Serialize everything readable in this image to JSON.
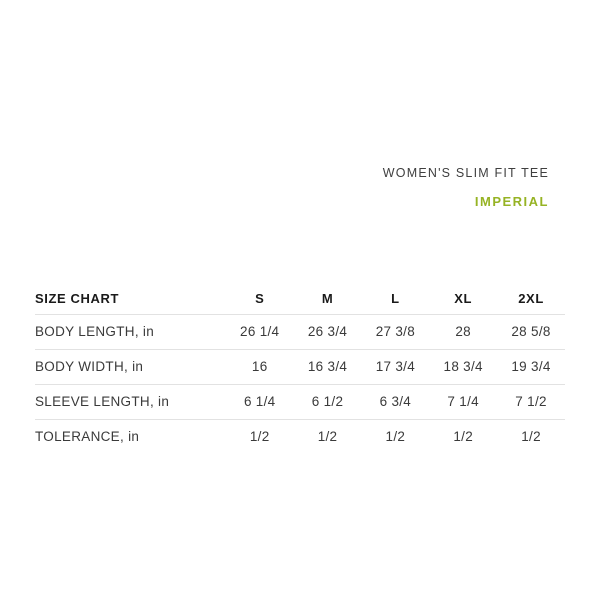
{
  "header": {
    "product_title": "WOMEN'S SLIM FIT TEE",
    "unit_label": "IMPERIAL",
    "unit_label_color": "#96b324",
    "title_color": "#3f3f3f"
  },
  "size_chart": {
    "title": "SIZE CHART",
    "columns": [
      "S",
      "M",
      "L",
      "XL",
      "2XL"
    ],
    "rows": [
      {
        "label": "BODY LENGTH, in",
        "values": [
          "26 1/4",
          "26 3/4",
          "27 3/8",
          "28",
          "28 5/8"
        ]
      },
      {
        "label": "BODY WIDTH, in",
        "values": [
          "16",
          "16 3/4",
          "17 3/4",
          "18 3/4",
          "19 3/4"
        ]
      },
      {
        "label": "SLEEVE LENGTH, in",
        "values": [
          "6 1/4",
          "6 1/2",
          "6 3/4",
          "7 1/4",
          "7 1/2"
        ]
      },
      {
        "label": "TOLERANCE, in",
        "values": [
          "1/2",
          "1/2",
          "1/2",
          "1/2",
          "1/2"
        ]
      }
    ],
    "divider_color": "#e2e2e2",
    "text_color": "#3a3a3a",
    "header_text_color": "#1a1a1a",
    "background_color": "#ffffff"
  }
}
